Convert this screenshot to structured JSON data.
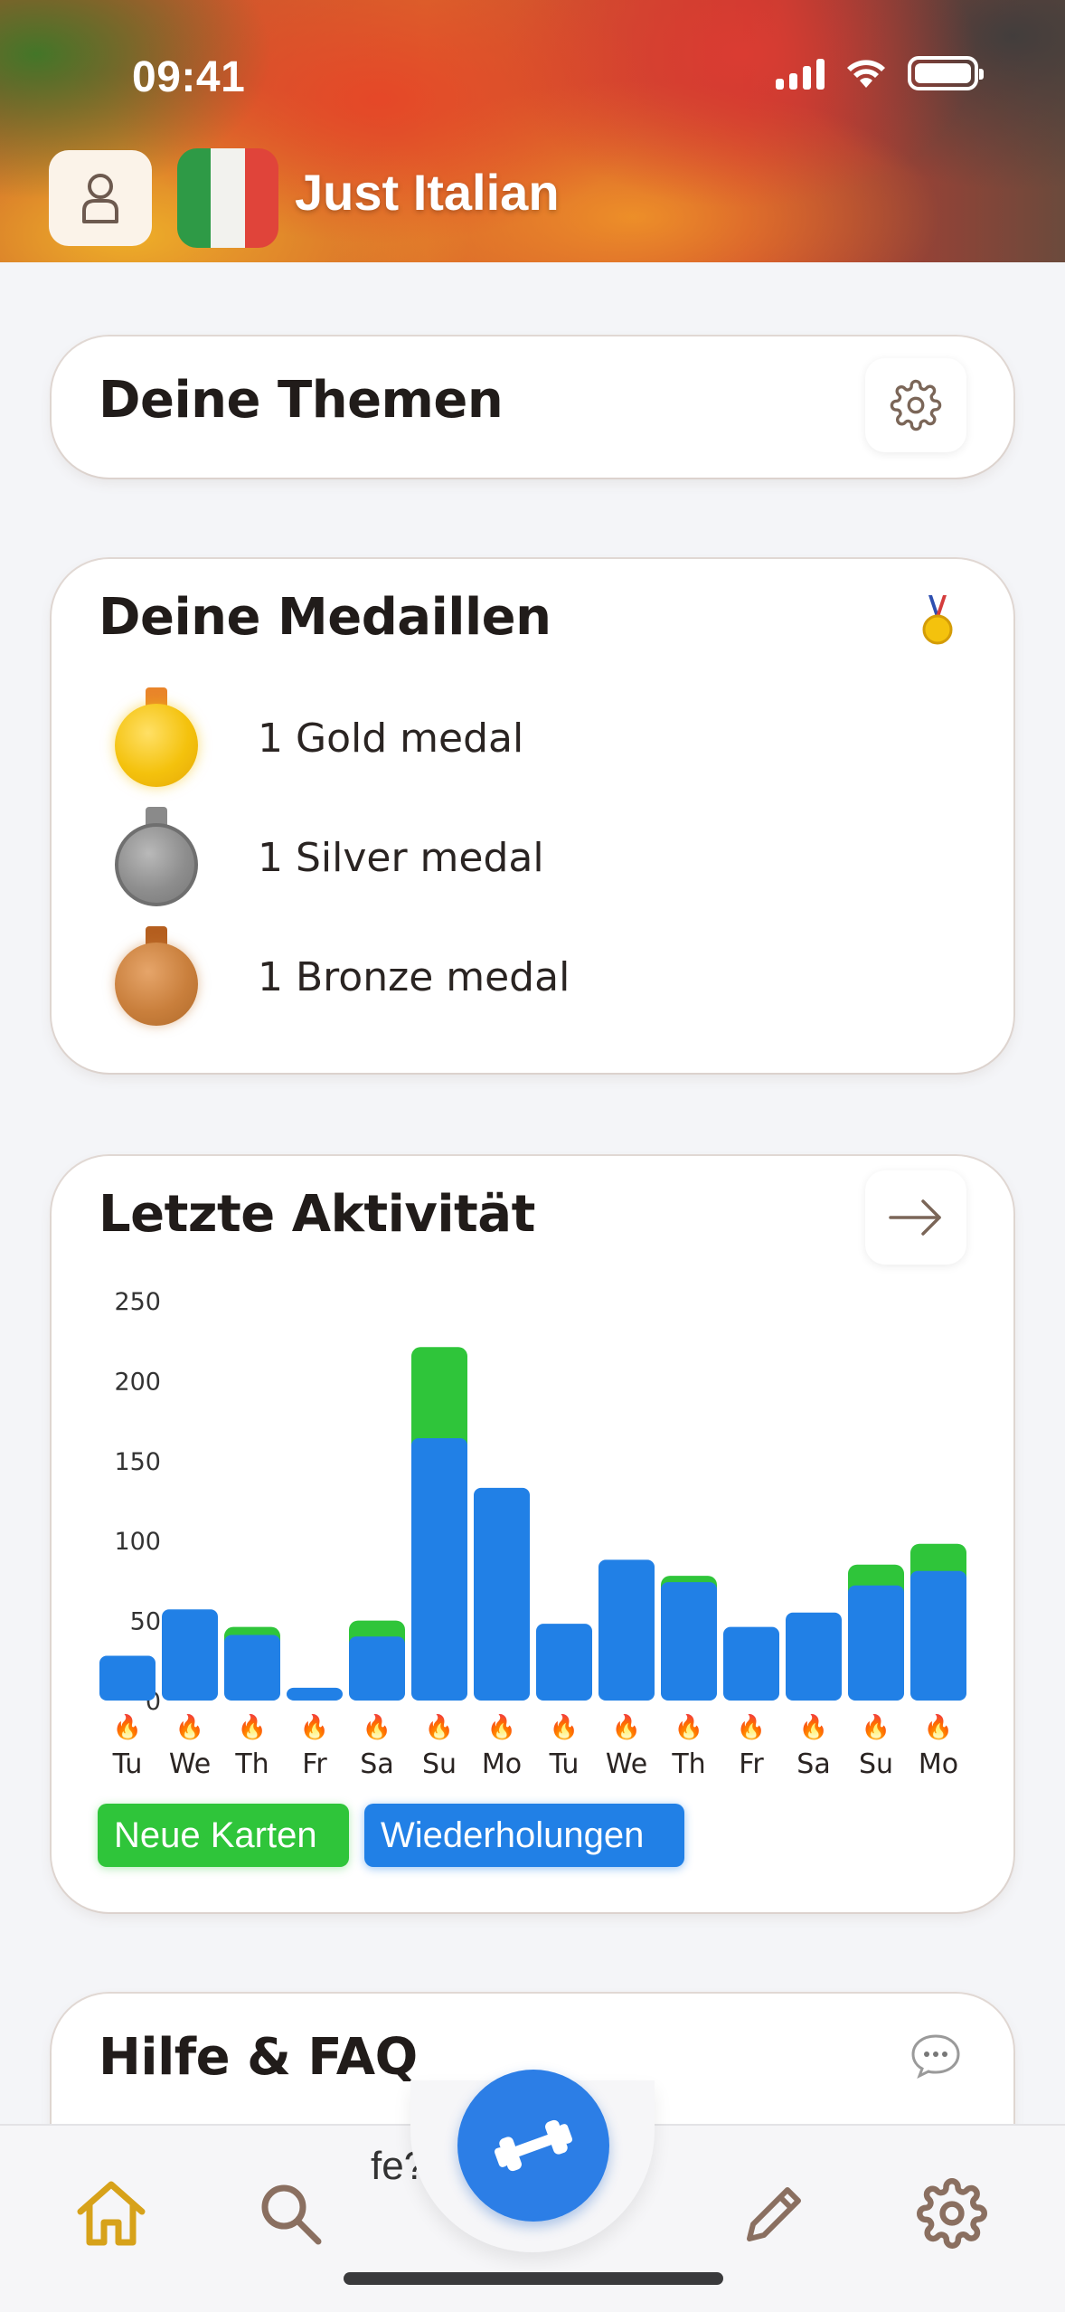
{
  "status_bar": {
    "time": "09:41"
  },
  "header": {
    "app_title": "Just Italian"
  },
  "topics_card": {
    "title": "Deine Themen"
  },
  "medals_card": {
    "title": "Deine Medaillen",
    "items": [
      {
        "label": "1 Gold medal",
        "color": "#f4c20d"
      },
      {
        "label": "1 Silver medal",
        "color": "#8e8e8e"
      },
      {
        "label": "1 Bronze medal",
        "color": "#c97f3c"
      }
    ]
  },
  "activity_card": {
    "title": "Letzte Aktivität",
    "legend": {
      "new_cards": "Neue Karten",
      "reviews": "Wiederholungen"
    }
  },
  "chart_data": {
    "type": "bar",
    "stacked": true,
    "categories": [
      "Tu",
      "We",
      "Th",
      "Fr",
      "Sa",
      "Su",
      "Mo",
      "Tu",
      "We",
      "Th",
      "Fr",
      "Sa",
      "Su",
      "Mo"
    ],
    "series": [
      {
        "name": "Wiederholungen",
        "color": "#2180e6",
        "values": [
          28,
          57,
          41,
          8,
          40,
          164,
          133,
          48,
          88,
          74,
          46,
          55,
          72,
          81
        ]
      },
      {
        "name": "Neue Karten",
        "color": "#2fc53a",
        "values": [
          0,
          0,
          5,
          0,
          10,
          57,
          0,
          0,
          0,
          4,
          0,
          0,
          13,
          17
        ]
      }
    ],
    "yticks": [
      0,
      50,
      100,
      150,
      200,
      250
    ],
    "ylim": [
      0,
      250
    ],
    "day_marker": "🔥",
    "grid": false
  },
  "faq_card": {
    "title": "Hilfe & FAQ",
    "peek_text": "fe?     hier"
  },
  "nav": {
    "items": [
      "home",
      "search",
      "practice",
      "edit",
      "settings"
    ]
  }
}
